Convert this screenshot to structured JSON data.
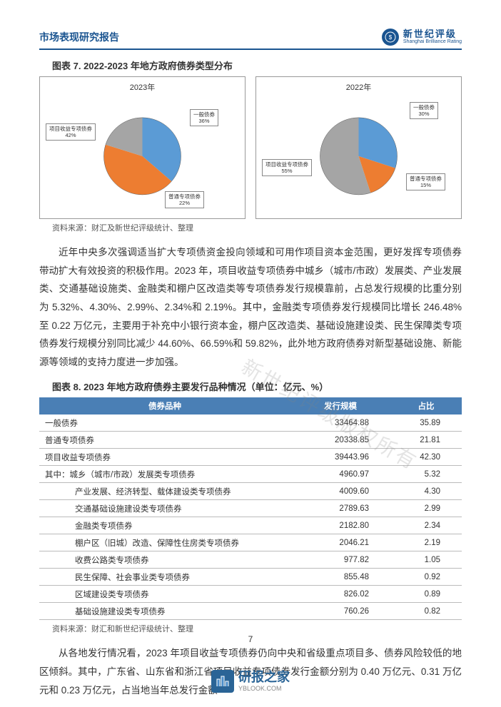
{
  "header": {
    "report_title": "市场表现研究报告",
    "logo_cn": "新世纪评级",
    "logo_en": "Shanghai Brilliance Rating"
  },
  "figure7": {
    "title": "图表 7. 2022-2023 年地方政府债券类型分布",
    "source": "资料来源：财汇及新世纪评级统计、整理",
    "left": {
      "year": "2023年",
      "slices": [
        {
          "label": "一般债券",
          "pct": "36%",
          "color": "#5b9bd5"
        },
        {
          "label": "普通专项债券",
          "pct": "22%",
          "color": "#ed7d31"
        },
        {
          "label": "项目收益专项债券",
          "pct": "42%",
          "color": "#a5a5a5"
        }
      ]
    },
    "right": {
      "year": "2022年",
      "slices": [
        {
          "label": "一般债券",
          "pct": "30%",
          "color": "#5b9bd5"
        },
        {
          "label": "普通专项债券",
          "pct": "15%",
          "color": "#ed7d31"
        },
        {
          "label": "项目收益专项债券",
          "pct": "55%",
          "color": "#a5a5a5"
        }
      ]
    }
  },
  "para1": "近年中央多次强调适当扩大专项债资金投向领域和可用作项目资本金范围，更好发挥专项债券带动扩大有效投资的积极作用。2023 年，项目收益专项债券中城乡（城市/市政）发展类、产业发展类、交通基础设施类、金融类和棚户区改造类等专项债券发行规模靠前，占总发行规模的比重分别为 5.32%、4.30%、2.99%、2.34%和 2.19%。其中，金融类专项债券发行规模同比增长 246.48%至 0.22 万亿元，主要用于补充中小银行资本金，棚户区改造类、基础设施建设类、民生保障类专项债券发行规模分别同比减少 44.60%、66.59%和 59.82%，此外地方政府债券对新型基础设施、新能源等领域的支持力度进一步加强。",
  "table8": {
    "title": "图表 8. 2023 年地方政府债券主要发行品种情况（单位：亿元、%）",
    "source": "资料来源：财汇和新世纪评级统计、整理",
    "header_bg": "#4a7fb5",
    "columns": [
      "债券品种",
      "发行规模",
      "占比"
    ],
    "rows": [
      {
        "c1": "一般债券",
        "c2": "33464.88",
        "c3": "35.89",
        "indent": false
      },
      {
        "c1": "普通专项债券",
        "c2": "20338.85",
        "c3": "21.81",
        "indent": false
      },
      {
        "c1": "项目收益专项债券",
        "c2": "39443.96",
        "c3": "42.30",
        "indent": false
      },
      {
        "c1": "其中：城乡（城市/市政）发展类专项债券",
        "c2": "4960.97",
        "c3": "5.32",
        "indent": false
      },
      {
        "c1": "产业发展、经济转型、载体建设类专项债券",
        "c2": "4009.60",
        "c3": "4.30",
        "indent": true
      },
      {
        "c1": "交通基础设施建设类专项债券",
        "c2": "2789.63",
        "c3": "2.99",
        "indent": true
      },
      {
        "c1": "金融类专项债券",
        "c2": "2182.80",
        "c3": "2.34",
        "indent": true
      },
      {
        "c1": "棚户区（旧城）改造、保障性住房类专项债券",
        "c2": "2046.21",
        "c3": "2.19",
        "indent": true
      },
      {
        "c1": "收费公路类专项债券",
        "c2": "977.82",
        "c3": "1.05",
        "indent": true
      },
      {
        "c1": "民生保障、社会事业类专项债券",
        "c2": "855.48",
        "c3": "0.92",
        "indent": true
      },
      {
        "c1": "区域建设类专项债券",
        "c2": "826.02",
        "c3": "0.89",
        "indent": true
      },
      {
        "c1": "基础设施建设类专项债券",
        "c2": "760.26",
        "c3": "0.82",
        "indent": true
      }
    ]
  },
  "para2": "从各地发行情况看，2023 年项目收益专项债券仍向中央和省级重点项目多、债券风险较低的地区倾斜。其中，广东省、山东省和浙江省项目收益专项债券发行金额分别为 0.40 万亿元、0.31 万亿元和 0.23 万亿元，占当地当年总发行金额",
  "page_num": "7",
  "watermark": "新世纪评级版权所有",
  "footer": {
    "cn": "研报之家",
    "en": "YBLOOK.COM"
  }
}
